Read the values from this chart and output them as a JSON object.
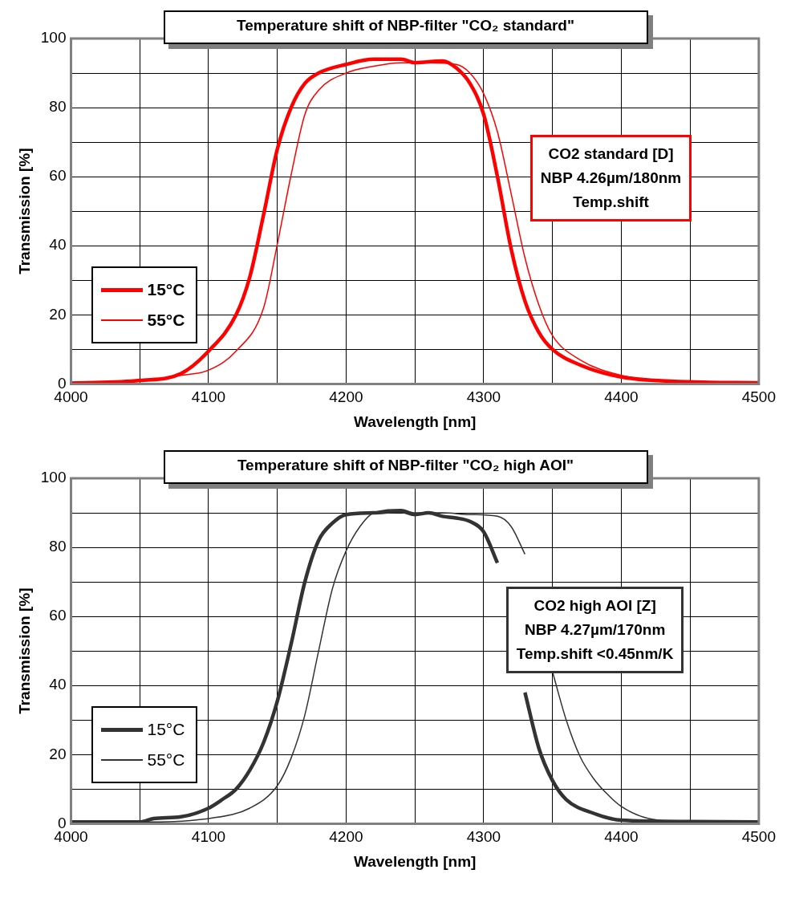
{
  "chart_data": [
    {
      "type": "line",
      "title": "Temperature shift of NBP-filter \"CO₂ standard\"",
      "xlabel": "Wavelength [nm]",
      "ylabel": "Transmission [%]",
      "annotations": [
        "CO2 standard [D]\nNBP 4.26µm/180nm\nTemp.shift"
      ],
      "xlim": [
        4000,
        4500
      ],
      "ylim": [
        0,
        100
      ],
      "xticks": [
        4000,
        {
          "value": 4050,
          "label": null
        },
        4100,
        {
          "value": 4150,
          "label": null
        },
        4200,
        {
          "value": 4250,
          "label": null
        },
        4300,
        {
          "value": 4350,
          "label": null
        },
        4400,
        {
          "value": 4450,
          "label": null
        },
        4500
      ],
      "yticks": [
        0,
        {
          "value": 10,
          "label": null
        },
        20,
        {
          "value": 30,
          "label": null
        },
        40,
        {
          "value": 50,
          "label": null
        },
        60,
        {
          "value": 70,
          "label": null
        },
        80,
        {
          "value": 90,
          "label": null
        },
        100
      ],
      "grid": true,
      "legend": "bottom left",
      "marker": "none",
      "line_style": "solid",
      "series": [
        {
          "name": "15°C",
          "color": "#ff0000",
          "x": [
            4000,
            4050,
            4080,
            4100,
            4120,
            4130,
            4140,
            4150,
            4160,
            4170,
            4180,
            4200,
            4220,
            4240,
            4250,
            4270,
            4280,
            4290,
            4300,
            4310,
            4320,
            4330,
            4340,
            4350,
            4370,
            4400,
            4450,
            4500
          ],
          "values": [
            0.2,
            1,
            3,
            9.5,
            20,
            31,
            49,
            68,
            80,
            87,
            90,
            92.5,
            94,
            94,
            93,
            93.5,
            91.5,
            87,
            78,
            60,
            39,
            24,
            15,
            10,
            5.5,
            2,
            0.6,
            0.3
          ]
        },
        {
          "name": "55°C",
          "color": "#ff0000",
          "x": [
            4000,
            4050,
            4080,
            4100,
            4120,
            4140,
            4150,
            4160,
            4170,
            4180,
            4200,
            4220,
            4240,
            4260,
            4280,
            4290,
            4300,
            4310,
            4320,
            4330,
            4340,
            4350,
            4370,
            4400,
            4450,
            4500
          ],
          "values": [
            0.2,
            1,
            2.5,
            4,
            9.5,
            22,
            40.5,
            60.5,
            78,
            85,
            90,
            92,
            93,
            93,
            92.5,
            90,
            84,
            73,
            55,
            36.5,
            23,
            14,
            7,
            2.5,
            0.6,
            0.3
          ]
        }
      ]
    },
    {
      "type": "line",
      "title": "Temperature shift of NBP-filter \"CO₂ high AOI\"",
      "xlabel": "Wavelength [nm]",
      "ylabel": "Transmission [%]",
      "annotations": [
        "CO2 high AOI [Z]\nNBP 4.27µm/170nm\nTemp.shift <0.45nm/K"
      ],
      "xlim": [
        4000,
        4500
      ],
      "ylim": [
        0,
        100
      ],
      "xticks": [
        4000,
        {
          "value": 4050,
          "label": null
        },
        4100,
        {
          "value": 4150,
          "label": null
        },
        4200,
        {
          "value": 4250,
          "label": null
        },
        4300,
        {
          "value": 4350,
          "label": null
        },
        4400,
        {
          "value": 4450,
          "label": null
        },
        4500
      ],
      "yticks": [
        0,
        {
          "value": 10,
          "label": null
        },
        20,
        {
          "value": 30,
          "label": null
        },
        40,
        {
          "value": 50,
          "label": null
        },
        60,
        {
          "value": 70,
          "label": null
        },
        80,
        {
          "value": 90,
          "label": null
        },
        100
      ],
      "grid": true,
      "legend": "bottom left",
      "marker": "none",
      "line_style": "solid",
      "series": [
        {
          "name": "15°C",
          "color": "#333333",
          "x": [
            4000,
            4050,
            4060,
            4080,
            4100,
            4110,
            4120,
            4130,
            4140,
            4150,
            4160,
            4170,
            4180,
            4190,
            4200,
            4220,
            4240,
            4250,
            4260,
            4270,
            4280,
            4290,
            4300,
            4310,
            4320,
            4330,
            4340,
            4350,
            4360,
            4380,
            4400,
            4450,
            4500
          ],
          "values": [
            0.5,
            0.5,
            1.5,
            2,
            4.5,
            7,
            10,
            15.5,
            23.5,
            35.5,
            52,
            70,
            82,
            87,
            89.5,
            90,
            90.5,
            89.5,
            90,
            89,
            88.5,
            87.5,
            84.5,
            75.5,
            null,
            38,
            22,
            12.5,
            7,
            3,
            1,
            0.6,
            0.5
          ]
        },
        {
          "name": "55°C",
          "color": "#333333",
          "x": [
            4000,
            4050,
            4100,
            4130,
            4150,
            4160,
            4170,
            4180,
            4190,
            4200,
            4210,
            4220,
            4240,
            4250,
            4270,
            4290,
            4310,
            4320,
            4330,
            4340,
            4350,
            4360,
            4370,
            4380,
            4390,
            4400,
            4420,
            4450,
            4500
          ],
          "values": [
            0.5,
            0.5,
            1.5,
            4.5,
            11,
            19,
            31.5,
            50,
            68,
            79,
            86,
            90,
            91,
            90,
            90,
            89.5,
            89,
            86,
            78,
            null,
            44,
            30,
            19.5,
            13,
            8.5,
            5,
            1.5,
            0.6,
            0.5
          ]
        }
      ]
    }
  ]
}
